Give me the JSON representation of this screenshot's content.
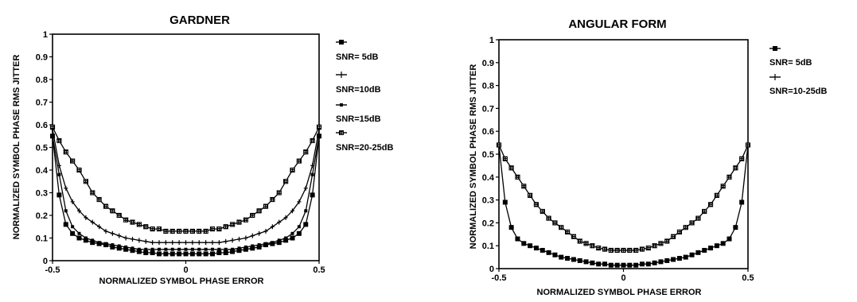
{
  "chart_data": [
    {
      "type": "line",
      "title": "GARDNER",
      "xlabel": "NORMALIZED SYMBOL PHASE ERROR",
      "ylabel": "NORMALIZED SYMBOL PHASE RMS JITTER",
      "xlim": [
        -0.5,
        0.5
      ],
      "ylim": [
        0,
        1
      ],
      "x_ticks": [
        "-0.5",
        "0",
        "0.5"
      ],
      "y_ticks": [
        "0",
        "0.1",
        "0.2",
        "0.3",
        "0.4",
        "0.5",
        "0.6",
        "0.7",
        "0.8",
        "0.9",
        "1"
      ],
      "grid": false,
      "legend_position": "right",
      "x": [
        -0.5,
        -0.475,
        -0.45,
        -0.425,
        -0.4,
        -0.375,
        -0.35,
        -0.325,
        -0.3,
        -0.275,
        -0.25,
        -0.225,
        -0.2,
        -0.175,
        -0.15,
        -0.125,
        -0.1,
        -0.075,
        -0.05,
        -0.025,
        0,
        0.025,
        0.05,
        0.075,
        0.1,
        0.125,
        0.15,
        0.175,
        0.2,
        0.225,
        0.25,
        0.275,
        0.3,
        0.325,
        0.35,
        0.375,
        0.4,
        0.425,
        0.45,
        0.475,
        0.5
      ],
      "series": [
        {
          "name": "SNR= 5dB",
          "marker": "filled-square",
          "values": [
            0.55,
            0.29,
            0.16,
            0.12,
            0.1,
            0.09,
            0.08,
            0.075,
            0.07,
            0.06,
            0.055,
            0.05,
            0.045,
            0.04,
            0.035,
            0.035,
            0.03,
            0.03,
            0.03,
            0.03,
            0.03,
            0.03,
            0.03,
            0.03,
            0.03,
            0.035,
            0.035,
            0.04,
            0.045,
            0.05,
            0.055,
            0.06,
            0.07,
            0.075,
            0.08,
            0.09,
            0.1,
            0.12,
            0.16,
            0.29,
            0.55
          ]
        },
        {
          "name": "SNR=10dB",
          "marker": "plus",
          "values": [
            0.58,
            0.42,
            0.32,
            0.26,
            0.22,
            0.19,
            0.17,
            0.15,
            0.13,
            0.12,
            0.11,
            0.1,
            0.095,
            0.09,
            0.085,
            0.08,
            0.08,
            0.08,
            0.08,
            0.08,
            0.08,
            0.08,
            0.08,
            0.08,
            0.08,
            0.08,
            0.085,
            0.09,
            0.095,
            0.1,
            0.11,
            0.12,
            0.13,
            0.15,
            0.17,
            0.19,
            0.22,
            0.26,
            0.32,
            0.42,
            0.58
          ]
        },
        {
          "name": "SNR=15dB",
          "marker": "small-square",
          "values": [
            0.55,
            0.38,
            0.22,
            0.15,
            0.12,
            0.1,
            0.09,
            0.08,
            0.075,
            0.07,
            0.065,
            0.06,
            0.055,
            0.05,
            0.05,
            0.05,
            0.05,
            0.05,
            0.05,
            0.05,
            0.05,
            0.05,
            0.05,
            0.05,
            0.05,
            0.05,
            0.05,
            0.05,
            0.055,
            0.06,
            0.065,
            0.07,
            0.075,
            0.08,
            0.09,
            0.1,
            0.12,
            0.15,
            0.22,
            0.38,
            0.55
          ]
        },
        {
          "name": "SNR=20-25dB",
          "marker": "open-square",
          "values": [
            0.59,
            0.53,
            0.48,
            0.44,
            0.4,
            0.35,
            0.3,
            0.27,
            0.24,
            0.22,
            0.2,
            0.18,
            0.17,
            0.16,
            0.15,
            0.14,
            0.14,
            0.13,
            0.13,
            0.13,
            0.13,
            0.13,
            0.13,
            0.13,
            0.14,
            0.14,
            0.15,
            0.16,
            0.17,
            0.18,
            0.2,
            0.22,
            0.24,
            0.27,
            0.3,
            0.35,
            0.4,
            0.44,
            0.48,
            0.53,
            0.59
          ]
        }
      ]
    },
    {
      "type": "line",
      "title": "ANGULAR FORM",
      "xlabel": "NORMALIZED SYMBOL PHASE ERROR",
      "ylabel": "NORMALIZED SYMBOL PHASE RMS JITTER",
      "xlim": [
        -0.5,
        0.5
      ],
      "ylim": [
        0,
        1
      ],
      "x_ticks": [
        "-0.5",
        "0",
        "0.5"
      ],
      "y_ticks": [
        "0",
        "0.1",
        "0.2",
        "0.3",
        "0.4",
        "0.5",
        "0.6",
        "0.7",
        "0.8",
        "0.9",
        "1"
      ],
      "grid": false,
      "legend_position": "right",
      "x": [
        -0.5,
        -0.475,
        -0.45,
        -0.425,
        -0.4,
        -0.375,
        -0.35,
        -0.325,
        -0.3,
        -0.275,
        -0.25,
        -0.225,
        -0.2,
        -0.175,
        -0.15,
        -0.125,
        -0.1,
        -0.075,
        -0.05,
        -0.025,
        0,
        0.025,
        0.05,
        0.075,
        0.1,
        0.125,
        0.15,
        0.175,
        0.2,
        0.225,
        0.25,
        0.275,
        0.3,
        0.325,
        0.35,
        0.375,
        0.4,
        0.425,
        0.45,
        0.475,
        0.5
      ],
      "series": [
        {
          "name": "SNR= 5dB",
          "marker": "filled-square",
          "values": [
            0.54,
            0.29,
            0.18,
            0.13,
            0.11,
            0.1,
            0.09,
            0.08,
            0.07,
            0.06,
            0.05,
            0.045,
            0.04,
            0.035,
            0.03,
            0.025,
            0.02,
            0.02,
            0.015,
            0.015,
            0.015,
            0.015,
            0.015,
            0.02,
            0.02,
            0.025,
            0.03,
            0.035,
            0.04,
            0.045,
            0.05,
            0.06,
            0.07,
            0.08,
            0.09,
            0.1,
            0.11,
            0.13,
            0.18,
            0.29,
            0.54
          ]
        },
        {
          "name": "SNR=10-25dB",
          "marker": "open-square",
          "values": [
            0.54,
            0.48,
            0.44,
            0.4,
            0.36,
            0.32,
            0.28,
            0.25,
            0.22,
            0.2,
            0.18,
            0.16,
            0.14,
            0.12,
            0.11,
            0.1,
            0.09,
            0.085,
            0.08,
            0.08,
            0.08,
            0.08,
            0.08,
            0.085,
            0.09,
            0.1,
            0.11,
            0.12,
            0.14,
            0.16,
            0.18,
            0.2,
            0.22,
            0.25,
            0.28,
            0.32,
            0.36,
            0.4,
            0.44,
            0.48,
            0.54
          ]
        }
      ]
    }
  ]
}
